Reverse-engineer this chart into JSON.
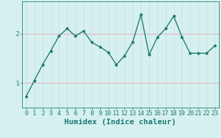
{
  "x": [
    0,
    1,
    2,
    3,
    4,
    5,
    6,
    7,
    8,
    9,
    10,
    11,
    12,
    13,
    14,
    15,
    16,
    17,
    18,
    19,
    20,
    21,
    22,
    23
  ],
  "y": [
    0.73,
    1.05,
    1.37,
    1.65,
    1.95,
    2.1,
    1.95,
    2.05,
    1.82,
    1.73,
    1.62,
    1.37,
    1.55,
    1.83,
    2.38,
    1.57,
    1.92,
    2.1,
    2.35,
    1.93,
    1.6,
    1.6,
    1.6,
    1.75
  ],
  "line_color": "#1a7a6e",
  "marker": ".",
  "marker_size": 4,
  "bg_color": "#d6f0f0",
  "grid_color_v": "#c8dede",
  "grid_color_h": "#e0b0b0",
  "xlabel": "Humidex (Indice chaleur)",
  "xlabel_fontsize": 8,
  "tick_fontsize": 6.5,
  "yticks": [
    1,
    2
  ],
  "xlim": [
    -0.5,
    23.5
  ],
  "ylim": [
    0.5,
    2.65
  ],
  "line_width": 1.0
}
